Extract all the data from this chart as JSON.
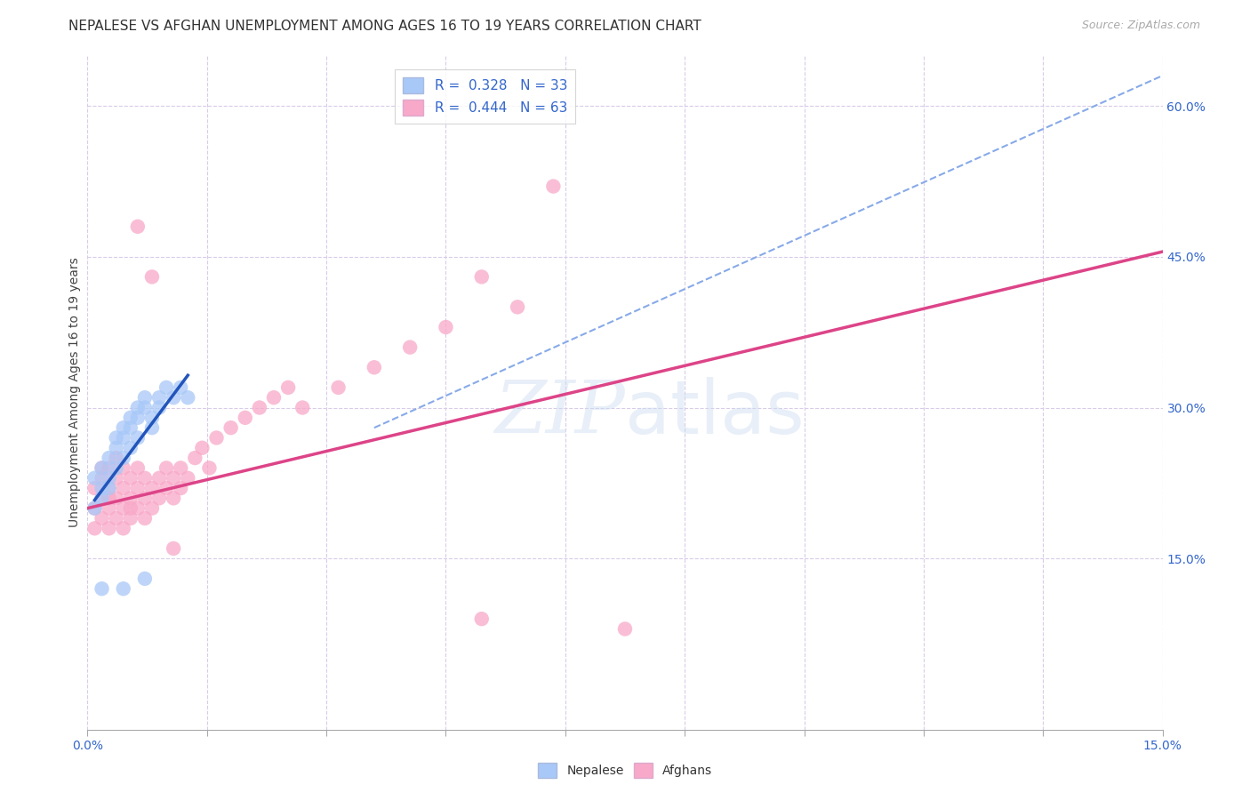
{
  "title": "NEPALESE VS AFGHAN UNEMPLOYMENT AMONG AGES 16 TO 19 YEARS CORRELATION CHART",
  "source": "Source: ZipAtlas.com",
  "ylabel": "Unemployment Among Ages 16 to 19 years",
  "xlim": [
    0.0,
    0.15
  ],
  "ylim": [
    -0.02,
    0.65
  ],
  "watermark": "ZIPatlas",
  "nepalese_R": 0.328,
  "nepalese_N": 33,
  "afghan_R": 0.444,
  "afghan_N": 63,
  "nepalese_color": "#a8c8f8",
  "afghan_color": "#f8a8c8",
  "nepalese_line_color": "#2255bb",
  "afghan_line_color": "#dd4488",
  "dashed_line_color": "#88aae8",
  "background_color": "#ffffff",
  "grid_color": "#d8cce8",
  "nepalese_x": [
    0.001,
    0.001,
    0.002,
    0.002,
    0.002,
    0.003,
    0.003,
    0.003,
    0.004,
    0.004,
    0.004,
    0.005,
    0.005,
    0.005,
    0.006,
    0.006,
    0.006,
    0.007,
    0.007,
    0.007,
    0.008,
    0.008,
    0.009,
    0.009,
    0.01,
    0.01,
    0.011,
    0.012,
    0.013,
    0.014,
    0.002,
    0.005,
    0.008
  ],
  "nepalese_y": [
    0.2,
    0.23,
    0.21,
    0.24,
    0.22,
    0.22,
    0.25,
    0.23,
    0.26,
    0.27,
    0.24,
    0.28,
    0.27,
    0.25,
    0.29,
    0.28,
    0.26,
    0.3,
    0.29,
    0.27,
    0.31,
    0.3,
    0.29,
    0.28,
    0.31,
    0.3,
    0.32,
    0.31,
    0.32,
    0.31,
    0.12,
    0.12,
    0.13
  ],
  "afghan_x": [
    0.001,
    0.001,
    0.001,
    0.002,
    0.002,
    0.002,
    0.002,
    0.003,
    0.003,
    0.003,
    0.003,
    0.003,
    0.004,
    0.004,
    0.004,
    0.004,
    0.005,
    0.005,
    0.005,
    0.005,
    0.006,
    0.006,
    0.006,
    0.006,
    0.007,
    0.007,
    0.007,
    0.008,
    0.008,
    0.008,
    0.009,
    0.009,
    0.01,
    0.01,
    0.011,
    0.011,
    0.012,
    0.012,
    0.013,
    0.013,
    0.014,
    0.015,
    0.016,
    0.017,
    0.018,
    0.02,
    0.022,
    0.024,
    0.026,
    0.028,
    0.03,
    0.035,
    0.04,
    0.045,
    0.05,
    0.055,
    0.06,
    0.065,
    0.007,
    0.009,
    0.012,
    0.055,
    0.075
  ],
  "afghan_y": [
    0.2,
    0.22,
    0.18,
    0.21,
    0.23,
    0.19,
    0.24,
    0.2,
    0.22,
    0.24,
    0.18,
    0.21,
    0.19,
    0.23,
    0.21,
    0.25,
    0.2,
    0.22,
    0.18,
    0.24,
    0.19,
    0.21,
    0.23,
    0.2,
    0.22,
    0.2,
    0.24,
    0.21,
    0.23,
    0.19,
    0.22,
    0.2,
    0.23,
    0.21,
    0.24,
    0.22,
    0.23,
    0.21,
    0.24,
    0.22,
    0.23,
    0.25,
    0.26,
    0.24,
    0.27,
    0.28,
    0.29,
    0.3,
    0.31,
    0.32,
    0.3,
    0.32,
    0.34,
    0.36,
    0.38,
    0.43,
    0.4,
    0.52,
    0.48,
    0.43,
    0.16,
    0.09,
    0.08
  ],
  "afghan_line_x0": 0.0,
  "afghan_line_y0": 0.2,
  "afghan_line_x1": 0.15,
  "afghan_line_y1": 0.455,
  "dashed_line_x0": 0.04,
  "dashed_line_y0": 0.28,
  "dashed_line_x1": 0.15,
  "dashed_line_y1": 0.63
}
